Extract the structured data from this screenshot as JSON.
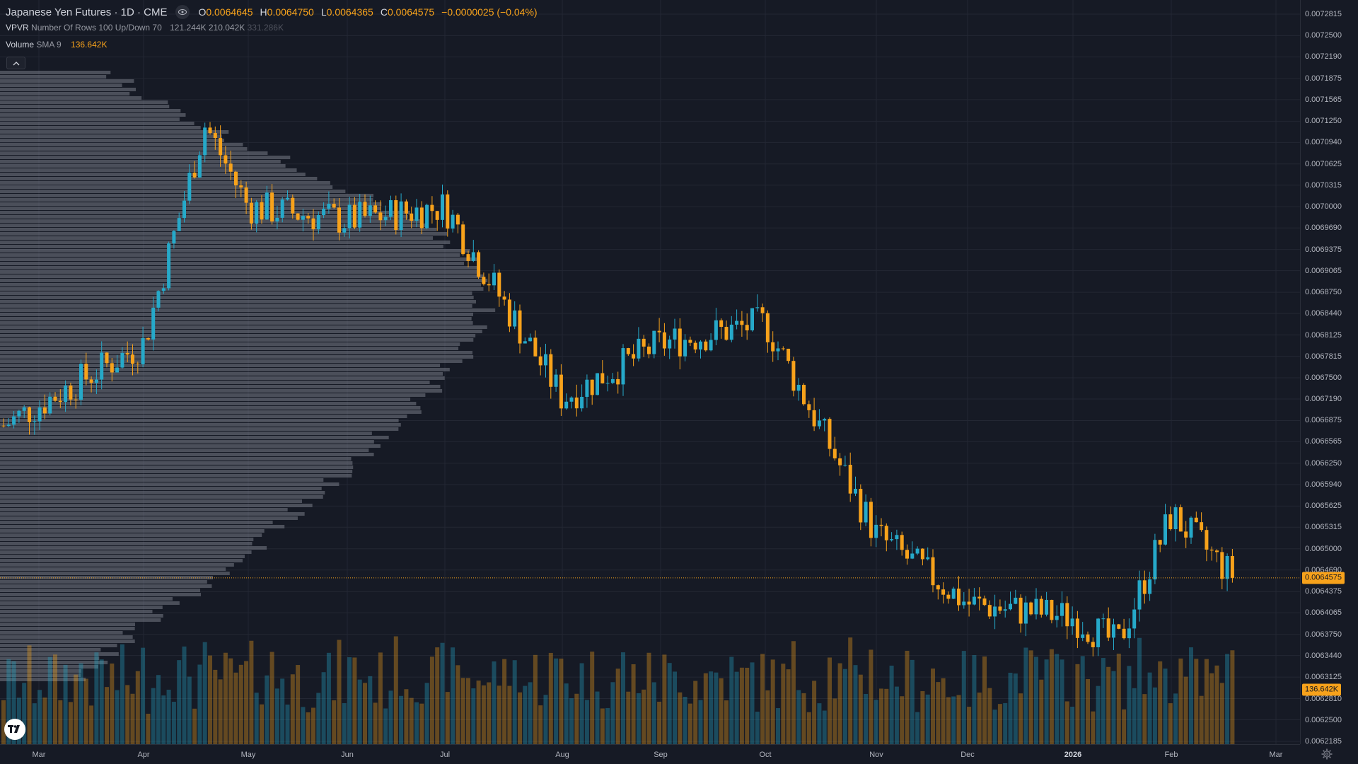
{
  "legend": {
    "symbol_title": "Japanese Yen Futures · 1D · CME",
    "ohlc": [
      {
        "key": "O",
        "value": "0.0064645"
      },
      {
        "key": "H",
        "value": "0.0064750"
      },
      {
        "key": "L",
        "value": "0.0064365"
      },
      {
        "key": "C",
        "value": "0.0064575"
      }
    ],
    "change": "−0.0000025 (−0.04%)",
    "vpvr": {
      "name": "VPVR",
      "params": "Number Of Rows 100 Up/Down 70",
      "up": "121.244K",
      "down": "210.042K",
      "total": "331.286K"
    },
    "volume": {
      "name": "Volume",
      "params": "SMA 9",
      "value": "136.642K"
    }
  },
  "price_axis": {
    "labels": [
      "0.0072815",
      "0.0072500",
      "0.0072190",
      "0.0071875",
      "0.0071565",
      "0.0071250",
      "0.0070940",
      "0.0070625",
      "0.0070315",
      "0.0070000",
      "0.0069690",
      "0.0069375",
      "0.0069065",
      "0.0068750",
      "0.0068440",
      "0.0068125",
      "0.0067815",
      "0.0067500",
      "0.0067190",
      "0.0066875",
      "0.0066565",
      "0.0066250",
      "0.0065940",
      "0.0065625",
      "0.0065315",
      "0.0065000",
      "0.0064690",
      "0.0064375",
      "0.0064065",
      "0.0063750",
      "0.0063440",
      "0.0063125",
      "0.0062810",
      "0.0062500",
      "0.0062185"
    ],
    "last_price_tag": "0.0064575",
    "volume_tag": "136.642K"
  },
  "time_axis": {
    "labels": [
      "Mar",
      "Apr",
      "May",
      "Jun",
      "Jul",
      "Aug",
      "Sep",
      "Oct",
      "Nov",
      "Dec",
      "2026",
      "Feb",
      "Mar"
    ]
  },
  "colors": {
    "up": "#26a9c9",
    "down": "#f7a21b",
    "background": "#161a25",
    "grid": "#232733",
    "volume_profile": "#787b86"
  },
  "icons": {
    "eye": "eye-icon",
    "collapse": "chevron-up-icon",
    "logo": "tradingview-logo-icon",
    "settings": "gear-icon"
  },
  "chart_data": {
    "type": "candlestick",
    "title": "Japanese Yen Futures · 1D · CME",
    "ylim": [
      0.0062185,
      0.0072815
    ],
    "x_range": [
      "Mar",
      "Mar"
    ],
    "grid": true,
    "series": [
      {
        "name": "Japanese Yen Futures",
        "kind": "ohlc_daily",
        "summary": "declining from ~0.00705 peak (Apr) to ~0.0063 (Jan 2026), rebound to 0.00657 (Feb), last 0.0064575",
        "anchors": [
          {
            "x": "Mar",
            "close": 0.00668
          },
          {
            "x": "Apr",
            "close": 0.0068
          },
          {
            "x": "Apr-mid",
            "close": 0.00712
          },
          {
            "x": "May",
            "close": 0.007
          },
          {
            "x": "Jun",
            "close": 0.00698
          },
          {
            "x": "Jul",
            "close": 0.007
          },
          {
            "x": "Aug",
            "close": 0.00672
          },
          {
            "x": "Sep",
            "close": 0.0068
          },
          {
            "x": "Oct",
            "close": 0.00683
          },
          {
            "x": "Nov",
            "close": 0.00652
          },
          {
            "x": "Dec",
            "close": 0.00642
          },
          {
            "x": "2026",
            "close": 0.0064
          },
          {
            "x": "Jan-end",
            "close": 0.00636
          },
          {
            "x": "Feb",
            "close": 0.00655
          },
          {
            "x": "Feb-end",
            "close": 0.0064575
          }
        ]
      },
      {
        "name": "Volume",
        "kind": "histogram",
        "last": "136.642K"
      },
      {
        "name": "VPVR",
        "kind": "volume_profile",
        "up": "121.244K",
        "down": "210.042K",
        "total": "331.286K"
      }
    ],
    "last_price": 0.0064575
  }
}
